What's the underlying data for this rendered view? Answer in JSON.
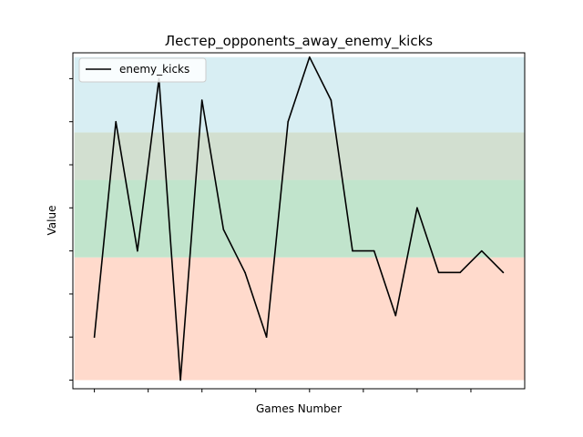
{
  "chart_data": {
    "type": "line",
    "title": "Лестер_opponents_away_enemy_kicks",
    "xlabel": "Games Number",
    "ylabel": "Value",
    "xlim": [
      -1,
      20
    ],
    "ylim": [
      -0.4,
      15.2
    ],
    "x": [
      0,
      1,
      2,
      3,
      4,
      5,
      6,
      7,
      8,
      9,
      10,
      11,
      12,
      13,
      14,
      15,
      16,
      17,
      18,
      19
    ],
    "series": [
      {
        "name": "enemy_kicks",
        "color": "#000000",
        "values": [
          2,
          12,
          6,
          14,
          0,
          13,
          7,
          5,
          2,
          12,
          15,
          13,
          6,
          6,
          3,
          8,
          5,
          5,
          6,
          5
        ]
      }
    ],
    "bands": [
      {
        "from": 0,
        "to": 5.7,
        "color": "#ffdacc"
      },
      {
        "from": 5.7,
        "to": 9.3,
        "color": "#c1e4cc"
      },
      {
        "from": 9.3,
        "to": 11.5,
        "color": "#d2dfd0"
      },
      {
        "from": 11.5,
        "to": 15,
        "color": "#d8eef3"
      }
    ],
    "x_ticks": [
      0,
      2.5,
      5,
      7.5,
      10,
      12.5,
      15,
      17.5
    ],
    "y_ticks": [
      0,
      2,
      4,
      6,
      8,
      10,
      12,
      14
    ],
    "legend": {
      "placement": "top-left"
    },
    "grid": false
  }
}
